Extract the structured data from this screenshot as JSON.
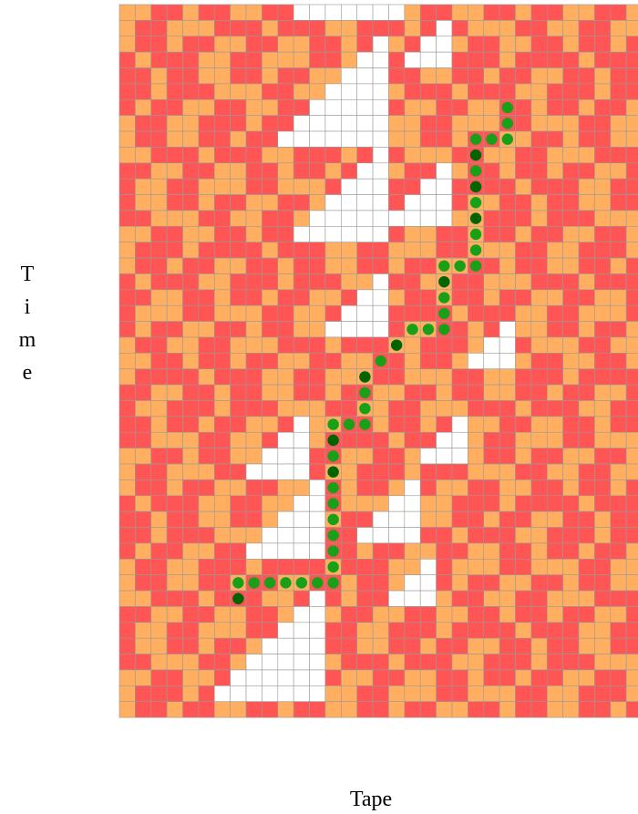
{
  "labels": {
    "y_axis": "Time",
    "x_axis": "Tape"
  },
  "head_path": [
    [
      24,
      6,
      0
    ],
    [
      24,
      7,
      0
    ],
    [
      24,
      8,
      0
    ],
    [
      23,
      8,
      0
    ],
    [
      22,
      8,
      0
    ],
    [
      22,
      9,
      1
    ],
    [
      22,
      10,
      0
    ],
    [
      22,
      11,
      1
    ],
    [
      22,
      12,
      0
    ],
    [
      22,
      13,
      1
    ],
    [
      22,
      14,
      0
    ],
    [
      22,
      15,
      0
    ],
    [
      22,
      16,
      0
    ],
    [
      21,
      16,
      0
    ],
    [
      20,
      16,
      0
    ],
    [
      20,
      17,
      1
    ],
    [
      20,
      18,
      0
    ],
    [
      20,
      19,
      0
    ],
    [
      20,
      20,
      0
    ],
    [
      19,
      20,
      0
    ],
    [
      18,
      20,
      0
    ],
    [
      17,
      21,
      1
    ],
    [
      16,
      22,
      0
    ],
    [
      15,
      23,
      1
    ],
    [
      15,
      24,
      0
    ],
    [
      15,
      25,
      0
    ],
    [
      15,
      26,
      0
    ],
    [
      14,
      26,
      0
    ],
    [
      13,
      26,
      0
    ],
    [
      13,
      27,
      1
    ],
    [
      13,
      28,
      0
    ],
    [
      13,
      29,
      1
    ],
    [
      13,
      30,
      0
    ],
    [
      13,
      31,
      0
    ],
    [
      13,
      32,
      0
    ],
    [
      13,
      33,
      0
    ],
    [
      13,
      34,
      0
    ],
    [
      13,
      35,
      0
    ],
    [
      13,
      36,
      0
    ],
    [
      12,
      36,
      0
    ],
    [
      11,
      36,
      0
    ],
    [
      10,
      36,
      0
    ],
    [
      9,
      36,
      0
    ],
    [
      8,
      36,
      0
    ],
    [
      7,
      36,
      0
    ],
    [
      7,
      37,
      1
    ]
  ]
}
